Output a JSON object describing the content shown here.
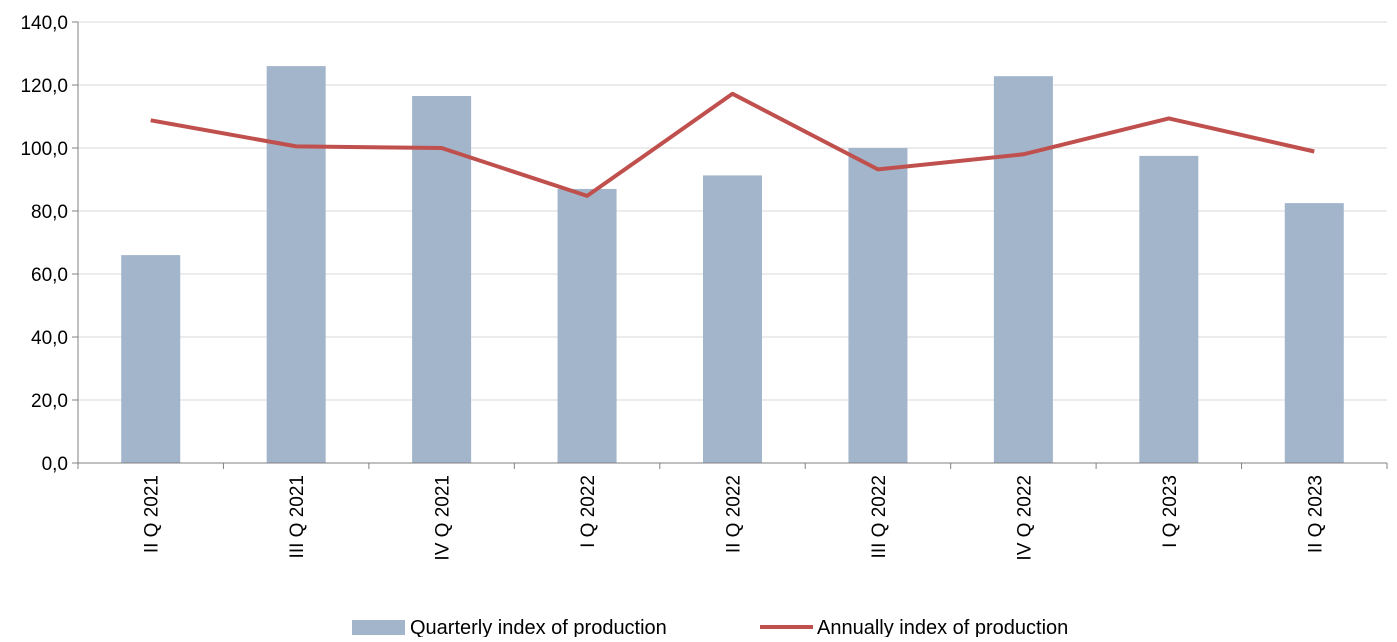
{
  "chart_data": {
    "type": "bar",
    "categories": [
      "II Q 2021",
      "III Q 2021",
      "IV Q 2021",
      "I Q 2022",
      "II Q 2022",
      "III Q 2022",
      "IV Q 2022",
      "I Q 2023",
      "II Q 2023"
    ],
    "series": [
      {
        "name": "Quarterly index of production",
        "type": "bar",
        "color": "#a2b5cb",
        "values": [
          66.0,
          126.0,
          116.5,
          87.0,
          91.3,
          100.0,
          122.8,
          97.5,
          82.5
        ]
      },
      {
        "name": "Annually index of production",
        "type": "line",
        "color": "#c0504d",
        "values": [
          108.8,
          100.5,
          100.0,
          84.8,
          117.2,
          93.2,
          98.0,
          109.4,
          98.9
        ]
      }
    ],
    "ylim": [
      0,
      140
    ],
    "yticks": [
      "0,0",
      "20,0",
      "40,0",
      "60,0",
      "80,0",
      "100,0",
      "120,0",
      "140,0"
    ],
    "ytick_values": [
      0,
      20,
      40,
      60,
      80,
      100,
      120,
      140
    ],
    "grid": true,
    "legend_position": "bottom-center"
  }
}
